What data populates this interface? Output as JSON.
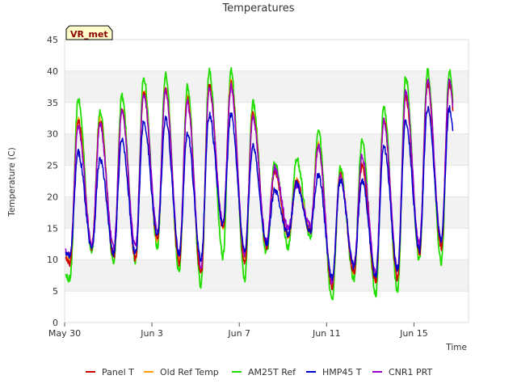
{
  "chart_data": {
    "type": "line",
    "title": "Temperatures",
    "xlabel": "Time",
    "ylabel": "Temperature (C)",
    "ylim": [
      0,
      45
    ],
    "yticks": [
      0,
      5,
      10,
      15,
      20,
      25,
      30,
      35,
      40,
      45
    ],
    "xlim_days": [
      0,
      18.5
    ],
    "xticks": [
      {
        "label": "May 30",
        "day": 0
      },
      {
        "label": "Jun 3",
        "day": 4
      },
      {
        "label": "Jun 7",
        "day": 8
      },
      {
        "label": "Jun 11",
        "day": 12
      },
      {
        "label": "Jun 15",
        "day": 16
      }
    ],
    "band_stripes": true,
    "badge": "VR_met",
    "daily_extremes": {
      "comment": "approximate daily min (early morning) and max (mid-afternoon) per series, days starting May 30",
      "series": [
        {
          "name": "Panel T",
          "color": "#cc0000",
          "mins": [
            9.5,
            12.0,
            10.5,
            10.0,
            13.0,
            9.5,
            7.5,
            15.0,
            9.5,
            12.0,
            13.5,
            14.5,
            5.5,
            8.0,
            6.5,
            7.0,
            11.0,
            12.0
          ],
          "maxs": [
            32.0,
            32.0,
            34.0,
            36.5,
            37.0,
            35.5,
            37.5,
            38.0,
            33.0,
            24.0,
            22.5,
            28.0,
            23.5,
            25.0,
            32.0,
            36.0,
            38.0
          ]
        },
        {
          "name": "Old Ref Temp",
          "color": "#ff9900",
          "mins": [
            9.8,
            12.2,
            10.8,
            10.2,
            13.2,
            9.8,
            7.8,
            15.2,
            9.8,
            12.2,
            13.7,
            14.7,
            5.8,
            8.2,
            6.8,
            7.2,
            11.2,
            12.2
          ],
          "maxs": [
            32.2,
            32.2,
            34.2,
            36.7,
            37.2,
            35.7,
            37.7,
            38.2,
            33.2,
            24.2,
            22.7,
            28.2,
            23.7,
            25.2,
            32.2,
            36.2,
            38.2
          ]
        },
        {
          "name": "AM25T Ref",
          "color": "#22dd00",
          "mins": [
            7.0,
            11.0,
            9.5,
            9.5,
            12.0,
            8.0,
            6.0,
            10.5,
            7.0,
            11.0,
            12.0,
            13.5,
            3.5,
            7.0,
            4.5,
            5.0,
            10.0,
            9.5
          ],
          "maxs": [
            35.5,
            33.5,
            36.0,
            39.0,
            39.5,
            37.5,
            40.0,
            40.0,
            35.0,
            25.5,
            26.0,
            30.5,
            24.5,
            29.0,
            34.5,
            39.0,
            40.0
          ]
        },
        {
          "name": "HMP45 T",
          "color": "#0000cc",
          "mins": [
            10.5,
            12.0,
            11.0,
            11.0,
            14.0,
            11.0,
            10.0,
            15.5,
            11.5,
            12.5,
            14.0,
            14.5,
            7.0,
            9.0,
            7.5,
            8.5,
            11.5,
            13.0
          ],
          "maxs": [
            27.0,
            26.0,
            29.0,
            32.0,
            32.5,
            30.0,
            33.0,
            33.0,
            28.0,
            21.0,
            22.0,
            23.5,
            22.5,
            22.5,
            28.0,
            32.0,
            34.0
          ]
        },
        {
          "name": "CNR1 PRT",
          "color": "#9900cc",
          "mins": [
            11.0,
            12.5,
            12.0,
            12.0,
            14.5,
            11.0,
            9.0,
            16.0,
            11.0,
            13.0,
            15.0,
            15.5,
            6.5,
            9.0,
            8.0,
            8.5,
            12.5,
            13.0
          ],
          "maxs": [
            31.0,
            31.5,
            33.5,
            36.5,
            37.0,
            35.0,
            37.0,
            37.5,
            32.5,
            24.5,
            22.0,
            28.0,
            23.5,
            26.5,
            32.0,
            36.5,
            38.5
          ]
        }
      ]
    }
  }
}
